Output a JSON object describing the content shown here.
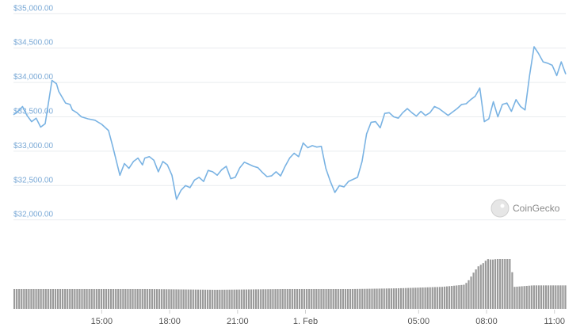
{
  "watermark": {
    "text": "CoinGecko"
  },
  "colors": {
    "line": "#7ab3e3",
    "grid": "#e9ecef",
    "volume": "#9a9a9a",
    "volume_light": "#b8b8b8"
  },
  "chart_data": {
    "type": "line",
    "yticks": [
      32000,
      32500,
      33000,
      33500,
      34000,
      34500,
      35000
    ],
    "ytick_labels": [
      "$32,000.00",
      "$32,500.00",
      "$33,000.00",
      "$33,500.00",
      "$34,000.00",
      "$34,500.00",
      "$35,000.00"
    ],
    "ylim": [
      31950,
      35050
    ],
    "xtick_labels": [
      "15:00",
      "18:00",
      "21:00",
      "1. Feb",
      "05:00",
      "08:00",
      "11:00"
    ],
    "xtick_hours": [
      15,
      18,
      21,
      24,
      29,
      32,
      35
    ],
    "xlim_hours": [
      11.1,
      35.5
    ],
    "grid": true,
    "price_series": {
      "x_hours": [
        11.1,
        11.3,
        11.5,
        11.7,
        11.9,
        12.1,
        12.3,
        12.5,
        12.8,
        13.0,
        13.1,
        13.4,
        13.6,
        13.7,
        13.9,
        14.1,
        14.4,
        14.7,
        15.0,
        15.3,
        15.5,
        15.8,
        16.0,
        16.2,
        16.4,
        16.6,
        16.8,
        16.9,
        17.1,
        17.3,
        17.5,
        17.7,
        17.9,
        18.1,
        18.3,
        18.5,
        18.7,
        18.9,
        19.1,
        19.3,
        19.5,
        19.7,
        19.9,
        20.1,
        20.3,
        20.5,
        20.7,
        20.9,
        21.1,
        21.3,
        21.5,
        21.7,
        21.9,
        22.1,
        22.3,
        22.5,
        22.7,
        22.9,
        23.1,
        23.3,
        23.5,
        23.7,
        23.9,
        24.1,
        24.3,
        24.5,
        24.7,
        24.9,
        25.1,
        25.3,
        25.5,
        25.7,
        25.9,
        26.1,
        26.3,
        26.5,
        26.7,
        26.9,
        27.1,
        27.3,
        27.5,
        27.7,
        27.9,
        28.1,
        28.3,
        28.5,
        28.7,
        28.9,
        29.1,
        29.3,
        29.5,
        29.7,
        29.9,
        30.1,
        30.3,
        30.5,
        30.7,
        30.9,
        31.1,
        31.3,
        31.5,
        31.7,
        31.9,
        32.1,
        32.3,
        32.5,
        32.7,
        32.9,
        33.1,
        33.3,
        33.5,
        33.7,
        33.9,
        34.1,
        34.3,
        34.5,
        34.7,
        34.9,
        35.1,
        35.3,
        35.5
      ],
      "y": [
        33530,
        33580,
        33650,
        33520,
        33430,
        33480,
        33350,
        33400,
        34030,
        33980,
        33870,
        33700,
        33680,
        33600,
        33560,
        33500,
        33470,
        33450,
        33390,
        33300,
        33050,
        32650,
        32820,
        32750,
        32850,
        32900,
        32800,
        32900,
        32920,
        32870,
        32700,
        32850,
        32800,
        32650,
        32300,
        32430,
        32500,
        32470,
        32580,
        32620,
        32560,
        32720,
        32700,
        32650,
        32730,
        32780,
        32600,
        32620,
        32760,
        32840,
        32810,
        32780,
        32760,
        32690,
        32630,
        32640,
        32700,
        32640,
        32780,
        32900,
        32970,
        32920,
        33120,
        33050,
        33080,
        33060,
        33070,
        32750,
        32560,
        32400,
        32500,
        32480,
        32560,
        32590,
        32620,
        32850,
        33250,
        33420,
        33430,
        33340,
        33550,
        33560,
        33500,
        33480,
        33560,
        33620,
        33560,
        33510,
        33580,
        33520,
        33560,
        33650,
        33620,
        33570,
        33520,
        33570,
        33620,
        33680,
        33690,
        33750,
        33800,
        33920,
        33430,
        33470,
        33720,
        33500,
        33680,
        33700,
        33580,
        33750,
        33650,
        33600,
        34100,
        34520,
        34420,
        34300,
        34280,
        34250,
        34100,
        34300,
        34120
      ]
    },
    "volume_series": {
      "x_hours": [
        11.1,
        14.0,
        17.0,
        20.0,
        23.0,
        26.0,
        28.0,
        30.0,
        31.0,
        31.2,
        31.4,
        31.6,
        31.8,
        32.0,
        32.2,
        32.4,
        32.6,
        32.8,
        33.0,
        33.2,
        33.6,
        34.0,
        34.5,
        35.0,
        35.5
      ],
      "values": [
        27,
        27,
        27,
        26,
        27,
        27,
        28,
        30,
        33,
        40,
        50,
        58,
        62,
        68,
        67,
        68,
        68,
        68,
        68,
        30,
        31,
        32,
        32,
        32,
        32
      ],
      "vlim": [
        0,
        68
      ]
    }
  }
}
